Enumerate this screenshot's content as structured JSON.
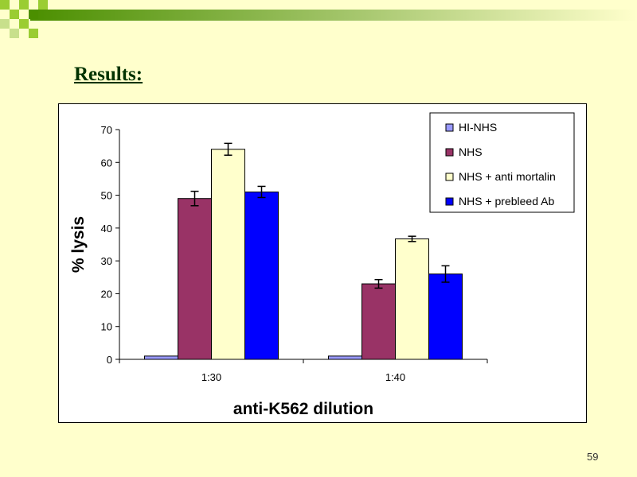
{
  "slide": {
    "title": "Results:",
    "number": "59"
  },
  "colors": {
    "background": "#FFFFCC",
    "title": "#003300",
    "deco_dark": "#4B8F00",
    "deco_light": "#9ACD32"
  },
  "chart_data": {
    "type": "bar",
    "categories": [
      "1:30",
      "1:40"
    ],
    "xlabel": "anti-K562 dilution",
    "ylabel": "% lysis",
    "ylim": [
      0,
      70
    ],
    "yticks": [
      0,
      10,
      20,
      30,
      40,
      50,
      60,
      70
    ],
    "grid": false,
    "legend_position": "top-right",
    "series": [
      {
        "name": "HI-NHS",
        "color": "#9999FF",
        "values": [
          1,
          1
        ],
        "errors": [
          0,
          0
        ]
      },
      {
        "name": "NHS",
        "color": "#993366",
        "values": [
          49,
          23
        ],
        "errors": [
          2.2,
          1.3
        ]
      },
      {
        "name": "NHS + anti mortalin",
        "color": "#FFFFCC",
        "values": [
          64,
          36.7
        ],
        "errors": [
          1.8,
          0.8
        ]
      },
      {
        "name": "NHS + prebleed Ab",
        "color": "#0000FF",
        "values": [
          51,
          26
        ],
        "errors": [
          1.7,
          2.5
        ]
      }
    ]
  }
}
